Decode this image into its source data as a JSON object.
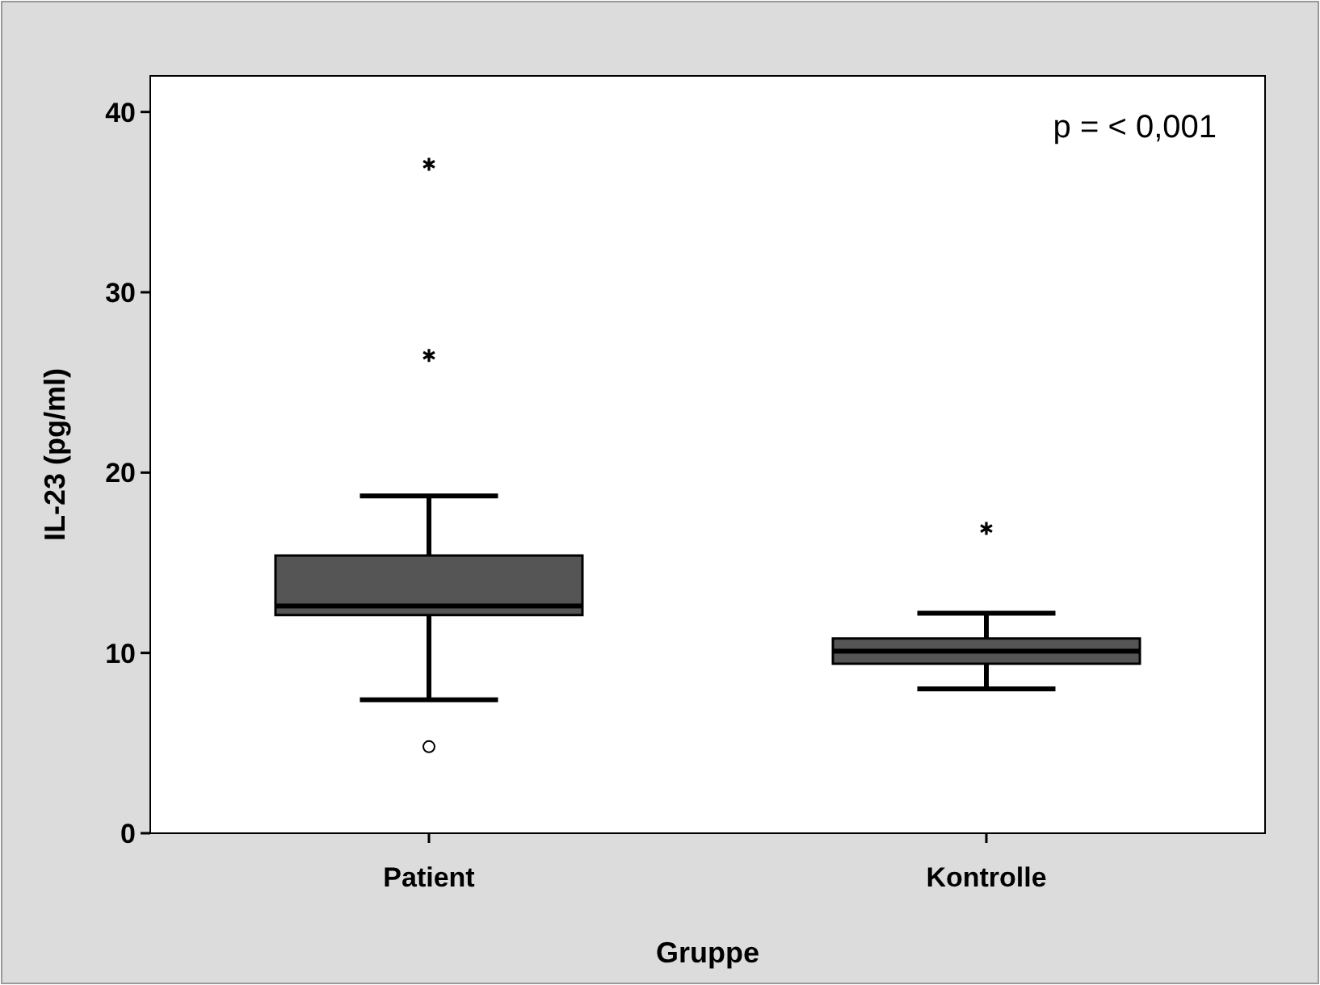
{
  "chart_data": {
    "type": "box",
    "xlabel": "Gruppe",
    "ylabel": "IL-23 (pg/ml)",
    "categories": [
      "Patient",
      "Kontrolle"
    ],
    "boxes": [
      {
        "low": 7.4,
        "q1": 12.1,
        "median": 12.6,
        "q3": 15.4,
        "high": 18.7,
        "outliers": [
          4.8,
          26.5,
          37.1
        ]
      },
      {
        "low": 8.0,
        "q1": 9.4,
        "median": 10.1,
        "q3": 10.8,
        "high": 12.2,
        "outliers": [
          16.9
        ]
      }
    ],
    "color": "#555555",
    "ylim": [
      0,
      42
    ],
    "yticks": [
      0,
      10,
      20,
      30,
      40
    ],
    "grid": false,
    "annotations": [
      "p = < 0,001"
    ]
  }
}
